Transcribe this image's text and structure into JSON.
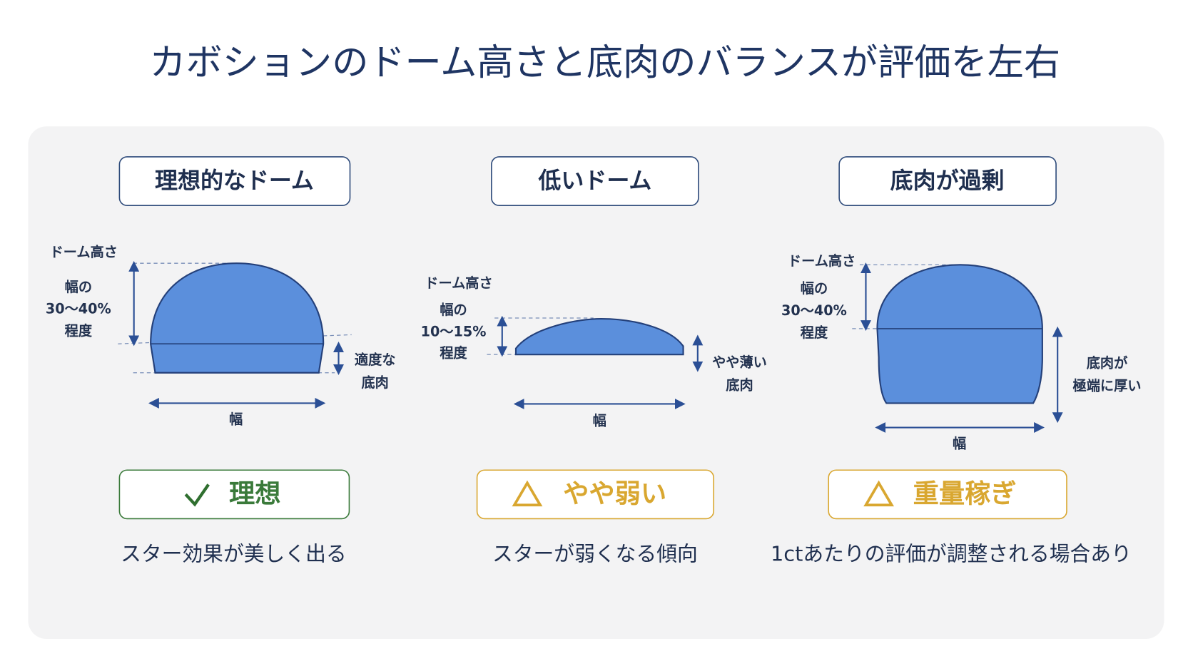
{
  "title": "カボションのドーム高さと底肉のバランスが評価を左右",
  "panels": [
    {
      "heading": "理想的なドーム",
      "dome_height_label": "ドーム高さ",
      "ratio_label": [
        "幅の",
        "30〜40%",
        "程度"
      ],
      "base_label": [
        "適度な",
        "底肉"
      ],
      "width_label": "幅",
      "verdict": "理想",
      "caption": "スター効果が美しく出る"
    },
    {
      "heading": "低いドーム",
      "dome_height_label": "ドーム高さ",
      "ratio_label": [
        "幅の",
        "10〜15%",
        "程度"
      ],
      "base_label": [
        "やや薄い",
        "底肉"
      ],
      "width_label": "幅",
      "verdict": "やや弱い",
      "caption": "スターが弱くなる傾向"
    },
    {
      "heading": "底肉が過剰",
      "dome_height_label": "ドーム高さ",
      "ratio_label": [
        "幅の",
        "30〜40%",
        "程度"
      ],
      "base_label": [
        "底肉が",
        "極端に厚い"
      ],
      "width_label": "幅",
      "verdict": "重量稼ぎ",
      "caption": "1ctあたりの評価が調整される場合あり"
    }
  ]
}
